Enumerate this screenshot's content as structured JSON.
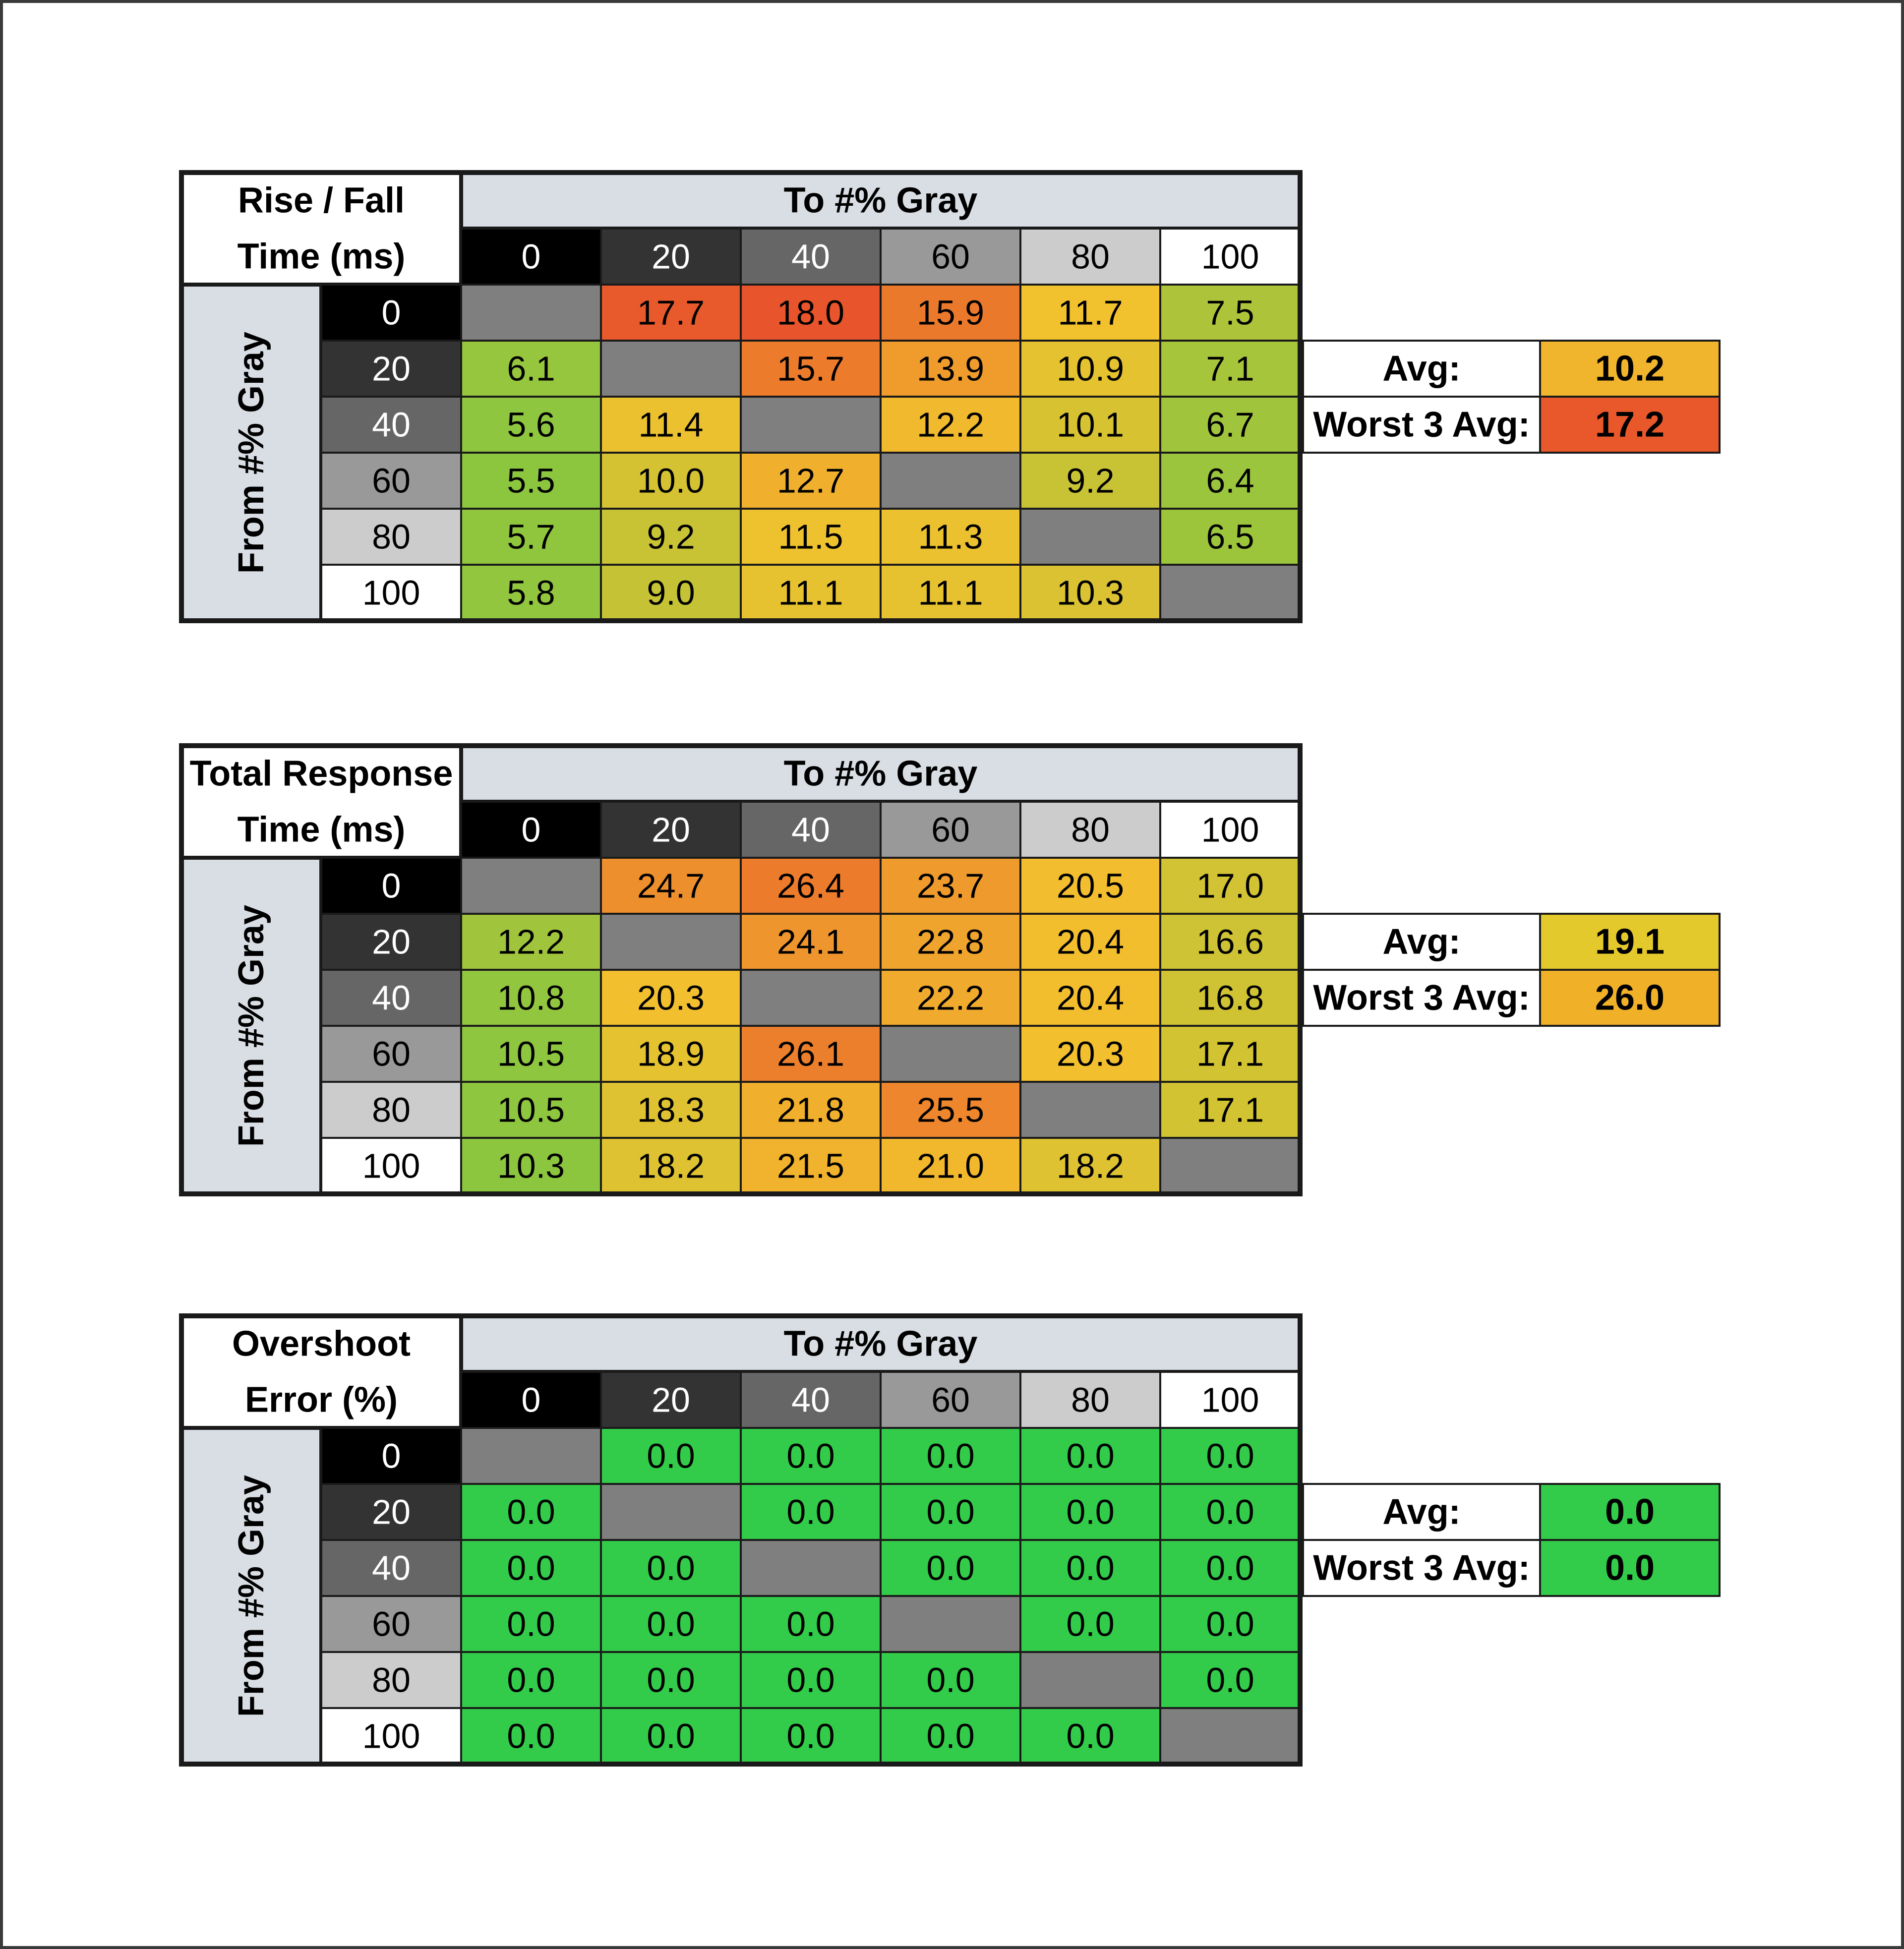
{
  "colors": {
    "header_fill": "#d9dee5",
    "empty_cell": "#7f7f7f",
    "border": "#1a1a1a",
    "gray_levels": {
      "0": "#000000",
      "20": "#333333",
      "40": "#666666",
      "60": "#999999",
      "80": "#cccccc",
      "100": "#ffffff"
    },
    "scale_good": "#8cc63f",
    "scale_mid": "#f2c12e",
    "scale_bad": "#e8542b",
    "overshoot_good": "#33cc4a"
  },
  "chart_data": [
    {
      "type": "heatmap",
      "title": "Rise / Fall Time (ms)",
      "title_lines": [
        "Rise / Fall",
        "Time (ms)"
      ],
      "xlabel": "To #% Gray",
      "ylabel": "From #% Gray",
      "x_categories": [
        "0",
        "20",
        "40",
        "60",
        "80",
        "100"
      ],
      "y_categories": [
        "0",
        "20",
        "40",
        "60",
        "80",
        "100"
      ],
      "values": [
        [
          null,
          17.7,
          18.0,
          15.9,
          11.7,
          7.5
        ],
        [
          6.1,
          null,
          15.7,
          13.9,
          10.9,
          7.1
        ],
        [
          5.6,
          11.4,
          null,
          12.2,
          10.1,
          6.7
        ],
        [
          5.5,
          10.0,
          12.7,
          null,
          9.2,
          6.4
        ],
        [
          5.7,
          9.2,
          11.5,
          11.3,
          null,
          6.5
        ],
        [
          5.8,
          9.0,
          11.1,
          11.1,
          10.3,
          null
        ]
      ],
      "color_scale": {
        "min": 5.5,
        "max": 18.0
      },
      "summary": [
        {
          "label": "Avg:",
          "value": "10.2",
          "color": "#f0b52c"
        },
        {
          "label": "Worst 3 Avg:",
          "value": "17.2",
          "color": "#e8582b"
        }
      ]
    },
    {
      "type": "heatmap",
      "title": "Total Response Time (ms)",
      "title_lines": [
        "Total Response",
        "Time (ms)"
      ],
      "xlabel": "To #% Gray",
      "ylabel": "From #% Gray",
      "x_categories": [
        "0",
        "20",
        "40",
        "60",
        "80",
        "100"
      ],
      "y_categories": [
        "0",
        "20",
        "40",
        "60",
        "80",
        "100"
      ],
      "values": [
        [
          null,
          24.7,
          26.4,
          23.7,
          20.5,
          17.0
        ],
        [
          12.2,
          null,
          24.1,
          22.8,
          20.4,
          16.6
        ],
        [
          10.8,
          20.3,
          null,
          22.2,
          20.4,
          16.8
        ],
        [
          10.5,
          18.9,
          26.1,
          null,
          20.3,
          17.1
        ],
        [
          10.5,
          18.3,
          21.8,
          25.5,
          null,
          17.1
        ],
        [
          10.3,
          18.2,
          21.5,
          21.0,
          18.2,
          null
        ]
      ],
      "color_scale": {
        "min": 10.3,
        "max": 30.0
      },
      "summary": [
        {
          "label": "Avg:",
          "value": "19.1",
          "color": "#e4c92c"
        },
        {
          "label": "Worst 3 Avg:",
          "value": "26.0",
          "color": "#f0b028"
        }
      ]
    },
    {
      "type": "heatmap",
      "title": "Overshoot Error (%)",
      "title_lines": [
        "Overshoot",
        "Error (%)"
      ],
      "xlabel": "To #% Gray",
      "ylabel": "From #% Gray",
      "x_categories": [
        "0",
        "20",
        "40",
        "60",
        "80",
        "100"
      ],
      "y_categories": [
        "0",
        "20",
        "40",
        "60",
        "80",
        "100"
      ],
      "values": [
        [
          null,
          0.0,
          0.0,
          0.0,
          0.0,
          0.0
        ],
        [
          0.0,
          null,
          0.0,
          0.0,
          0.0,
          0.0
        ],
        [
          0.0,
          0.0,
          null,
          0.0,
          0.0,
          0.0
        ],
        [
          0.0,
          0.0,
          0.0,
          null,
          0.0,
          0.0
        ],
        [
          0.0,
          0.0,
          0.0,
          0.0,
          null,
          0.0
        ],
        [
          0.0,
          0.0,
          0.0,
          0.0,
          0.0,
          null
        ]
      ],
      "color_scale": {
        "min": 0.0,
        "max": 0.0,
        "single_color": "#33cc4a"
      },
      "summary": [
        {
          "label": "Avg:",
          "value": "0.0",
          "color": "#33cc4a"
        },
        {
          "label": "Worst 3 Avg:",
          "value": "0.0",
          "color": "#33cc4a"
        }
      ]
    }
  ]
}
